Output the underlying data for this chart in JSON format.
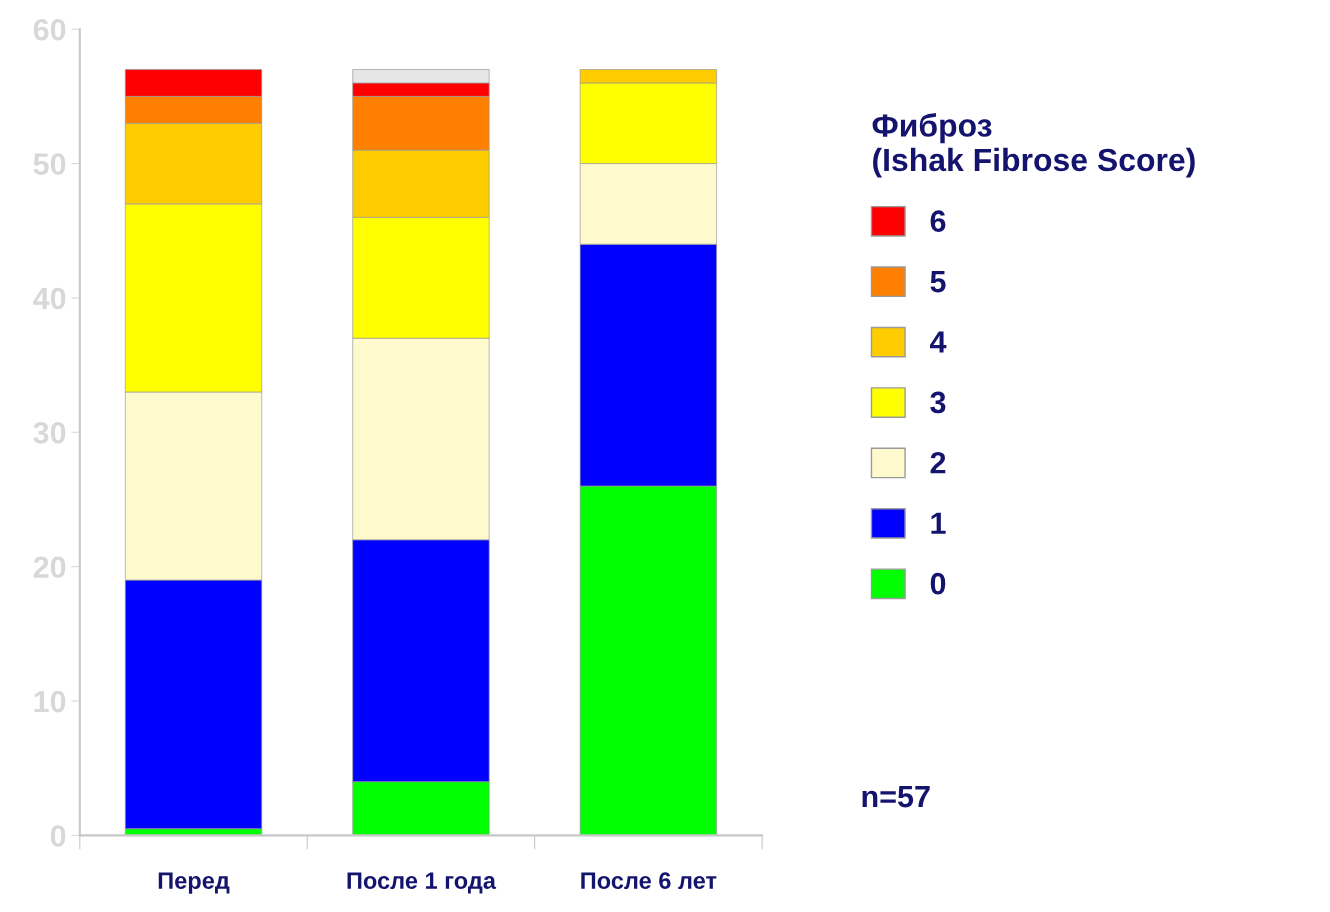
{
  "chart_data": {
    "type": "bar",
    "stacked": true,
    "categories": [
      "Перед",
      "После 1 года",
      "После 6 лет"
    ],
    "series": [
      {
        "name": "0",
        "color": "#00ff00",
        "values": [
          0.5,
          4,
          26
        ]
      },
      {
        "name": "1",
        "color": "#0000ff",
        "values": [
          18.5,
          18,
          18
        ]
      },
      {
        "name": "2",
        "color": "#fffacd",
        "values": [
          14,
          15,
          6
        ]
      },
      {
        "name": "3",
        "color": "#ffff00",
        "values": [
          14,
          9,
          6
        ]
      },
      {
        "name": "4",
        "color": "#ffcc00",
        "values": [
          6,
          5,
          1
        ]
      },
      {
        "name": "5",
        "color": "#ff7f00",
        "values": [
          2,
          4,
          0
        ]
      },
      {
        "name": "6",
        "color": "#ff0000",
        "values": [
          2,
          1,
          0
        ]
      },
      {
        "color": "#e6e6e6",
        "values": [
          0,
          1,
          0
        ]
      }
    ],
    "ylim": [
      0,
      60
    ],
    "yticks": [
      0,
      10,
      20,
      30,
      40,
      50,
      60
    ],
    "grid": false,
    "legend": "right",
    "legend_title": "Фиброз\n(Ishak Fibrose Score)",
    "annotations": [
      "n=57"
    ]
  }
}
